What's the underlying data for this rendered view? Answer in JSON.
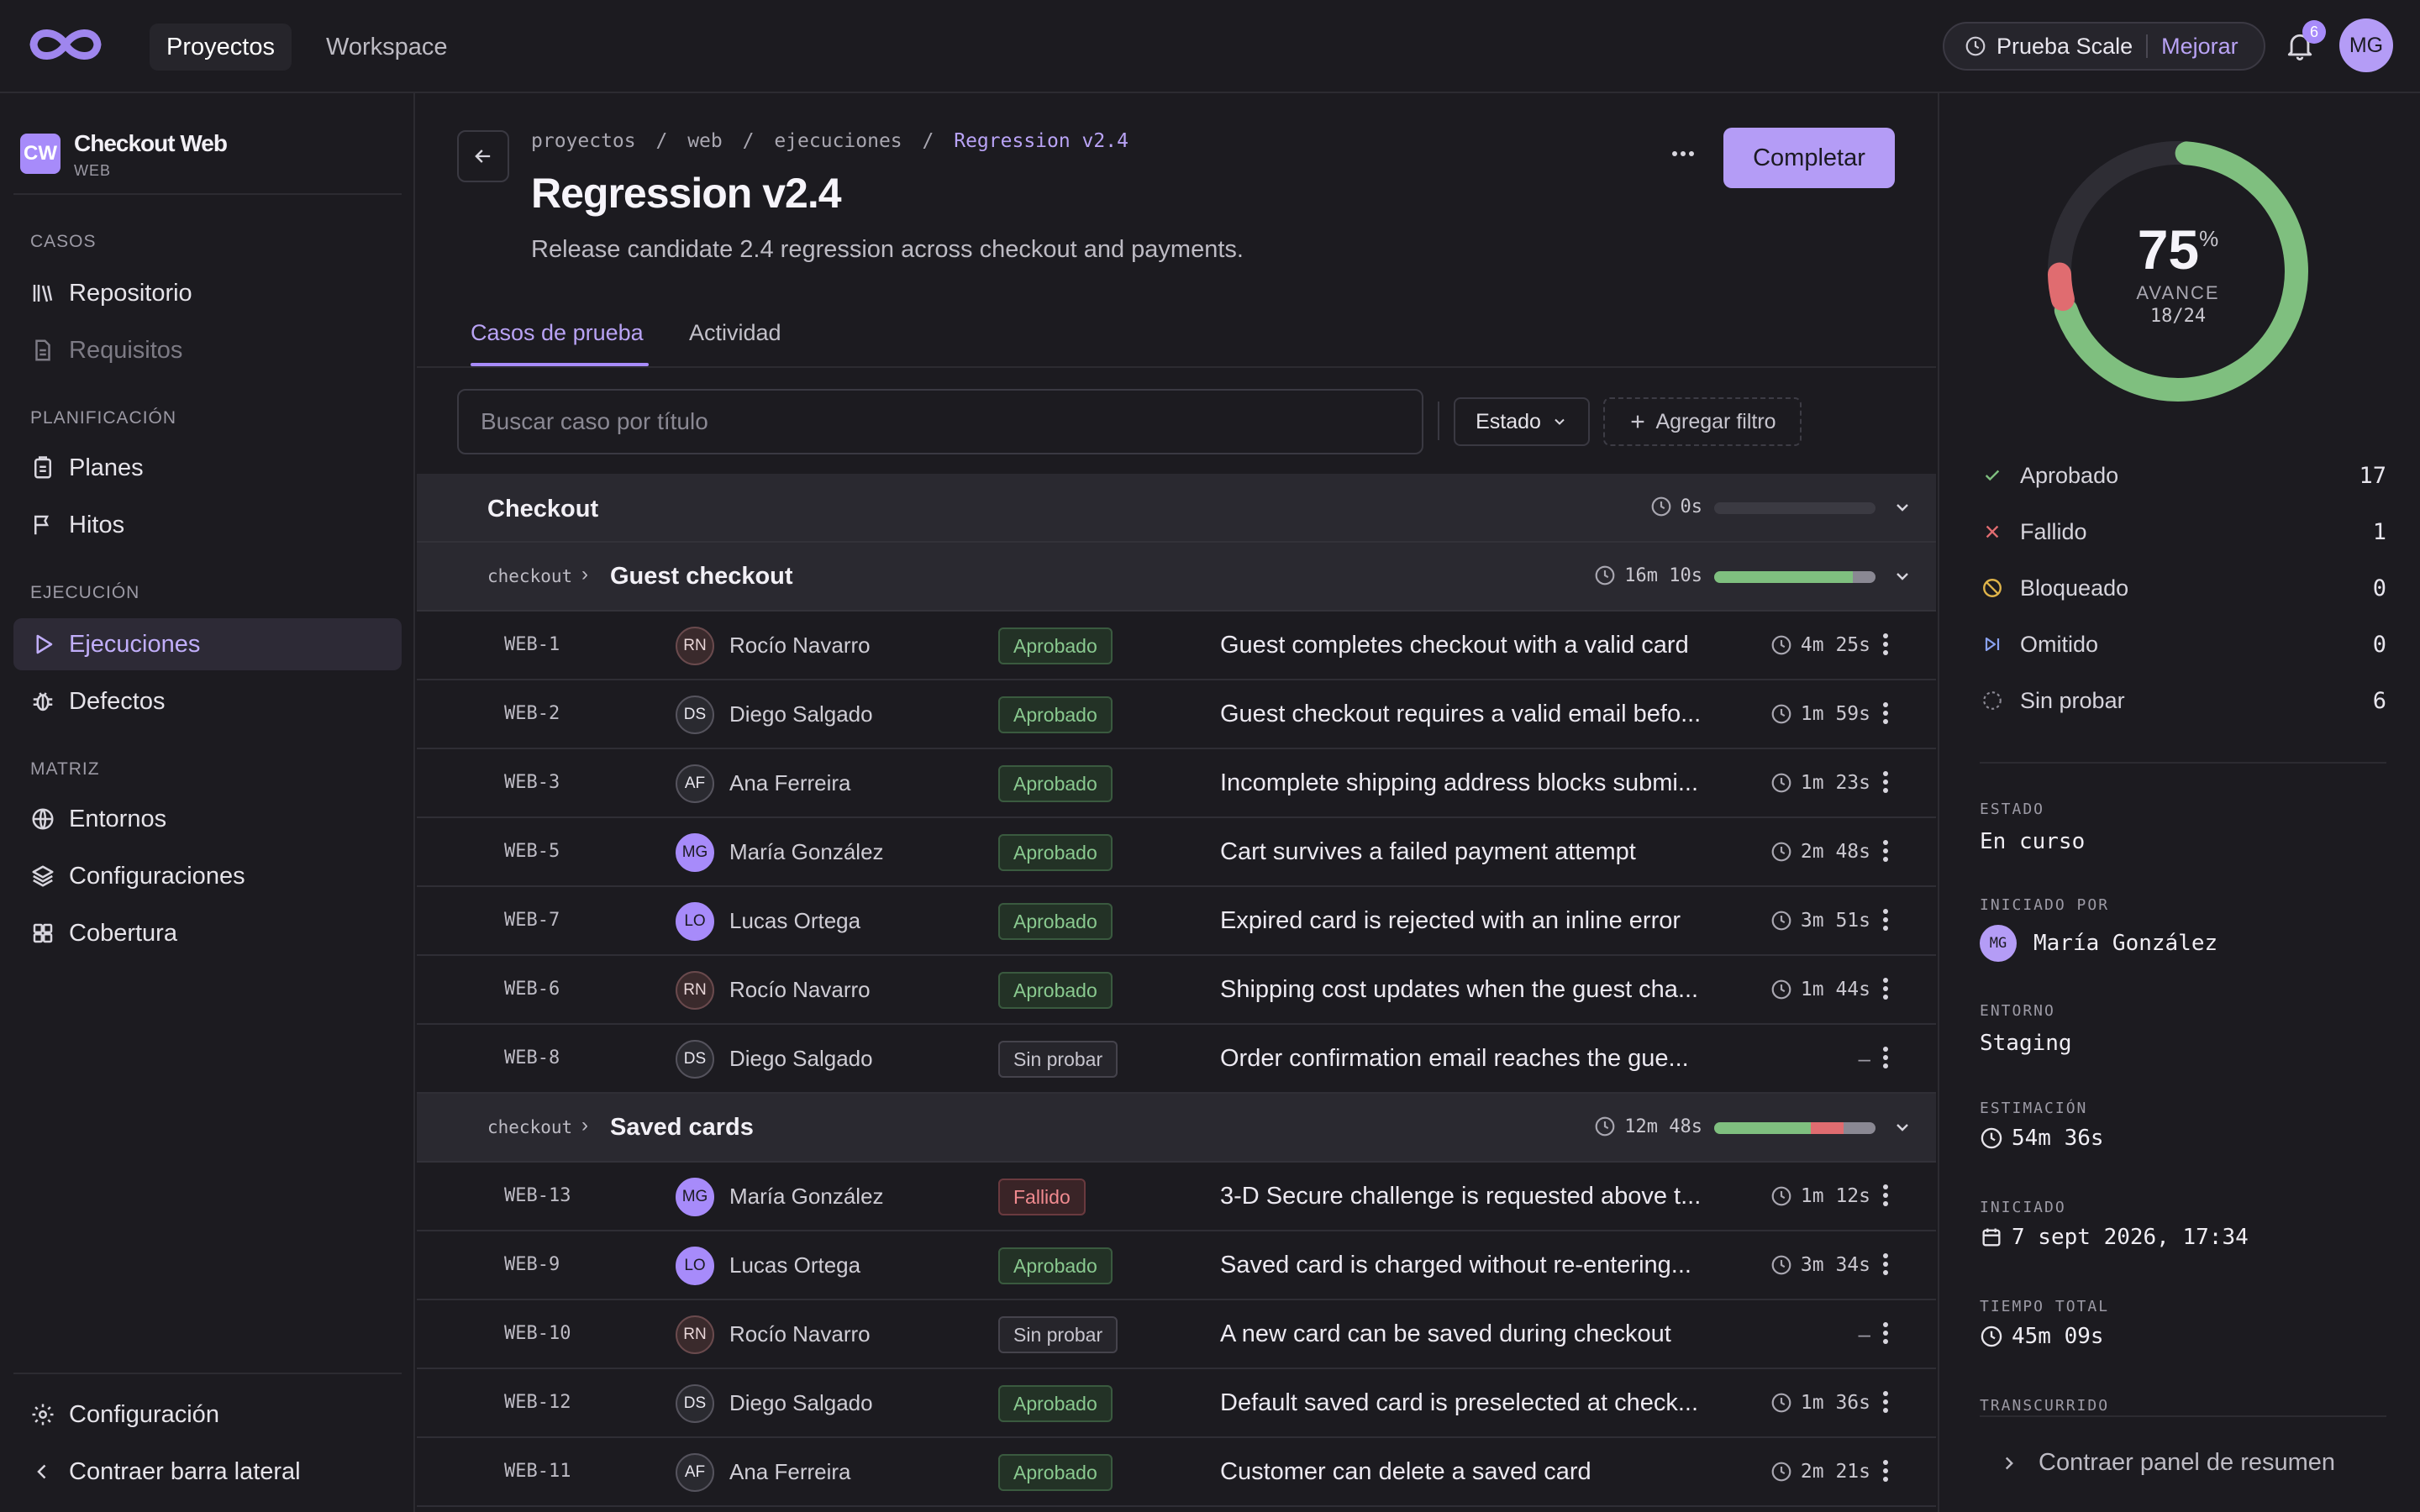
{
  "topbar": {
    "nav": [
      "Proyectos",
      "Workspace"
    ],
    "trial_label": "Prueba Scale",
    "upgrade_label": "Mejorar",
    "notif_count": "6",
    "user_initials": "MG"
  },
  "sidebar": {
    "project": {
      "initials": "CW",
      "name": "Checkout Web",
      "type": "WEB"
    },
    "sections": [
      {
        "title": "CASOS",
        "items": [
          "Repositorio",
          "Requisitos"
        ]
      },
      {
        "title": "PLANIFICACIÓN",
        "items": [
          "Planes",
          "Hitos"
        ]
      },
      {
        "title": "EJECUCIÓN",
        "items": [
          "Ejecuciones",
          "Defectos"
        ]
      },
      {
        "title": "MATRIZ",
        "items": [
          "Entornos",
          "Configuraciones",
          "Cobertura"
        ]
      }
    ],
    "footer": {
      "settings": "Configuración",
      "collapse": "Contraer barra lateral"
    }
  },
  "run": {
    "breadcrumb": [
      "proyectos",
      "web",
      "ejecuciones",
      "Regression v2.4"
    ],
    "breadcrumb_sep": "/",
    "title": "Regression v2.4",
    "description": "Release candidate 2.4 regression across checkout and payments.",
    "complete_label": "Completar"
  },
  "tabs": [
    "Casos de prueba",
    "Actividad"
  ],
  "filters": {
    "search_placeholder": "Buscar caso por título",
    "status_label": "Estado",
    "add_filter_label": "Agregar filtro"
  },
  "colors": {
    "accent": "#a78bfa",
    "passed": "#7fbf7f",
    "failed": "#e06c70",
    "untested": "#8a8893"
  },
  "groups": {
    "root": {
      "title": "Checkout",
      "time": "0s",
      "progress": {
        "passed": 0,
        "failed": 0,
        "untested": 0
      }
    },
    "guest": {
      "path": "checkout",
      "title": "Guest checkout",
      "time": "16m 10s",
      "progress": {
        "passed": 6,
        "failed": 0,
        "untested": 1
      }
    },
    "saved": {
      "path": "checkout",
      "title": "Saved cards",
      "time": "12m 48s",
      "progress": {
        "passed": 3,
        "failed": 1,
        "untested": 1
      }
    }
  },
  "guest_cases": [
    {
      "id": "WEB-1",
      "initials": "RN",
      "assignee": "Rocío Navarro",
      "status": "Aprobado",
      "title": "Guest completes checkout with a valid card",
      "time": "4m 25s"
    },
    {
      "id": "WEB-2",
      "initials": "DS",
      "assignee": "Diego Salgado",
      "status": "Aprobado",
      "title": "Guest checkout requires a valid email befo...",
      "time": "1m 59s"
    },
    {
      "id": "WEB-3",
      "initials": "AF",
      "assignee": "Ana Ferreira",
      "status": "Aprobado",
      "title": "Incomplete shipping address blocks submi...",
      "time": "1m 23s"
    },
    {
      "id": "WEB-5",
      "initials": "MG",
      "assignee": "María González",
      "status": "Aprobado",
      "title": "Cart survives a failed payment attempt",
      "time": "2m 48s"
    },
    {
      "id": "WEB-7",
      "initials": "LO",
      "assignee": "Lucas Ortega",
      "status": "Aprobado",
      "title": "Expired card is rejected with an inline error",
      "time": "3m 51s"
    },
    {
      "id": "WEB-6",
      "initials": "RN",
      "assignee": "Rocío Navarro",
      "status": "Aprobado",
      "title": "Shipping cost updates when the guest cha...",
      "time": "1m 44s"
    },
    {
      "id": "WEB-8",
      "initials": "DS",
      "assignee": "Diego Salgado",
      "status": "Sin probar",
      "title": "Order confirmation email reaches the gue...",
      "time": "–"
    }
  ],
  "saved_cases": [
    {
      "id": "WEB-13",
      "initials": "MG",
      "assignee": "María González",
      "status": "Fallido",
      "title": "3-D Secure challenge is requested above t...",
      "time": "1m 12s"
    },
    {
      "id": "WEB-9",
      "initials": "LO",
      "assignee": "Lucas Ortega",
      "status": "Aprobado",
      "title": "Saved card is charged without re-entering...",
      "time": "3m 34s"
    },
    {
      "id": "WEB-10",
      "initials": "RN",
      "assignee": "Rocío Navarro",
      "status": "Sin probar",
      "title": "A new card can be saved during checkout",
      "time": "–"
    },
    {
      "id": "WEB-12",
      "initials": "DS",
      "assignee": "Diego Salgado",
      "status": "Aprobado",
      "title": "Default saved card is preselected at check...",
      "time": "1m 36s"
    },
    {
      "id": "WEB-11",
      "initials": "AF",
      "assignee": "Ana Ferreira",
      "status": "Aprobado",
      "title": "Customer can delete a saved card",
      "time": "2m 21s"
    }
  ],
  "summary": {
    "percent": "75",
    "percent_sign": "%",
    "progress_label": "AVANCE",
    "fraction": "18/24",
    "stats": [
      {
        "label": "Aprobado",
        "count": "17",
        "icon": "check-icon"
      },
      {
        "label": "Fallido",
        "count": "1",
        "icon": "x-icon"
      },
      {
        "label": "Bloqueado",
        "count": "0",
        "icon": "blocked-icon"
      },
      {
        "label": "Omitido",
        "count": "0",
        "icon": "skip-icon"
      },
      {
        "label": "Sin probar",
        "count": "6",
        "icon": "dashed-circle-icon"
      }
    ],
    "meta": {
      "estado_label": "ESTADO",
      "estado": "En curso",
      "started_by_label": "INICIADO POR",
      "started_by_initials": "MG",
      "started_by": "María González",
      "env_label": "ENTORNO",
      "env": "Staging",
      "estimate_label": "ESTIMACIÓN",
      "estimate": "54m 36s",
      "started_label": "INICIADO",
      "started": "7 sept 2026, 17:34",
      "total_label": "TIEMPO TOTAL",
      "total": "45m 09s",
      "elapsed_label": "TRANSCURRIDO"
    },
    "collapse_label": "Contraer panel de resumen"
  }
}
